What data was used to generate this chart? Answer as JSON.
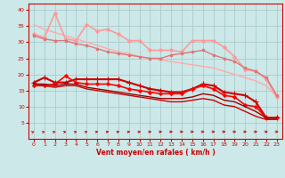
{
  "title": "",
  "xlabel": "Vent moyen/en rafales ( km/h )",
  "ylabel": "",
  "bg_color": "#cce8e8",
  "grid_color": "#aacccc",
  "x": [
    0,
    1,
    2,
    3,
    4,
    5,
    6,
    7,
    8,
    9,
    10,
    11,
    12,
    13,
    14,
    15,
    16,
    17,
    18,
    19,
    20,
    21,
    22,
    23
  ],
  "lines": [
    {
      "y": [
        35.5,
        34.0,
        33.0,
        32.0,
        31.0,
        30.0,
        29.0,
        28.0,
        27.0,
        26.5,
        25.5,
        25.0,
        24.5,
        24.0,
        23.5,
        23.0,
        22.5,
        22.0,
        21.0,
        20.0,
        19.0,
        18.0,
        16.5,
        13.0
      ],
      "color": "#ffaaaa",
      "lw": 1.0,
      "marker": null
    },
    {
      "y": [
        32.5,
        31.5,
        39.0,
        31.0,
        30.5,
        35.5,
        33.5,
        34.0,
        32.5,
        30.5,
        30.5,
        27.5,
        27.5,
        27.5,
        27.0,
        30.5,
        30.5,
        30.5,
        28.5,
        25.5,
        21.5,
        21.0,
        18.5,
        13.0
      ],
      "color": "#ff9999",
      "lw": 1.2,
      "marker": "D",
      "ms": 2.0
    },
    {
      "y": [
        32.0,
        31.0,
        30.5,
        30.5,
        29.5,
        29.0,
        28.0,
        27.0,
        26.5,
        26.0,
        25.5,
        25.0,
        25.0,
        26.0,
        26.5,
        27.0,
        27.5,
        26.0,
        25.0,
        24.0,
        22.0,
        21.0,
        19.0,
        13.5
      ],
      "color": "#dd7777",
      "lw": 1.0,
      "marker": "o",
      "ms": 1.8
    },
    {
      "y": [
        17.5,
        19.0,
        17.5,
        17.5,
        18.5,
        18.5,
        18.5,
        18.5,
        18.5,
        17.5,
        16.5,
        15.5,
        15.0,
        14.5,
        14.5,
        15.5,
        17.0,
        16.5,
        14.5,
        14.0,
        13.5,
        11.5,
        6.5,
        6.5
      ],
      "color": "#cc0000",
      "lw": 1.5,
      "marker": "+",
      "ms": 4.0
    },
    {
      "y": [
        16.5,
        16.5,
        17.0,
        19.5,
        17.5,
        17.0,
        17.0,
        17.0,
        16.5,
        15.5,
        15.0,
        14.5,
        14.0,
        14.0,
        14.0,
        15.5,
        16.5,
        15.5,
        13.5,
        13.0,
        10.5,
        10.0,
        6.5,
        6.5
      ],
      "color": "#ff0000",
      "lw": 1.2,
      "marker": "D",
      "ms": 2.0
    },
    {
      "y": [
        17.0,
        17.0,
        16.5,
        17.0,
        17.0,
        16.0,
        15.5,
        15.0,
        14.5,
        14.0,
        13.5,
        13.0,
        12.5,
        12.5,
        12.5,
        13.0,
        14.0,
        13.5,
        12.0,
        11.5,
        10.0,
        8.5,
        6.5,
        6.5
      ],
      "color": "#990000",
      "lw": 1.0,
      "marker": null
    },
    {
      "y": [
        17.0,
        16.5,
        16.0,
        16.5,
        16.5,
        15.5,
        15.0,
        14.5,
        14.0,
        13.5,
        13.0,
        12.5,
        12.0,
        11.5,
        11.5,
        12.0,
        12.5,
        12.0,
        10.5,
        10.0,
        8.5,
        7.0,
        6.0,
        6.0
      ],
      "color": "#cc0000",
      "lw": 1.0,
      "marker": null
    }
  ],
  "xlim": [
    -0.5,
    23.5
  ],
  "ylim": [
    0,
    42
  ],
  "yticks": [
    5,
    10,
    15,
    20,
    25,
    30,
    35,
    40
  ],
  "xticks": [
    0,
    1,
    2,
    3,
    4,
    5,
    6,
    7,
    8,
    9,
    10,
    11,
    12,
    13,
    14,
    15,
    16,
    17,
    18,
    19,
    20,
    21,
    22,
    23
  ],
  "arrow_angles_deg": [
    45,
    43,
    41,
    39,
    37,
    35,
    32,
    29,
    26,
    22,
    18,
    14,
    10,
    7,
    4,
    2,
    1,
    0,
    0,
    0,
    0,
    0,
    0,
    0
  ]
}
